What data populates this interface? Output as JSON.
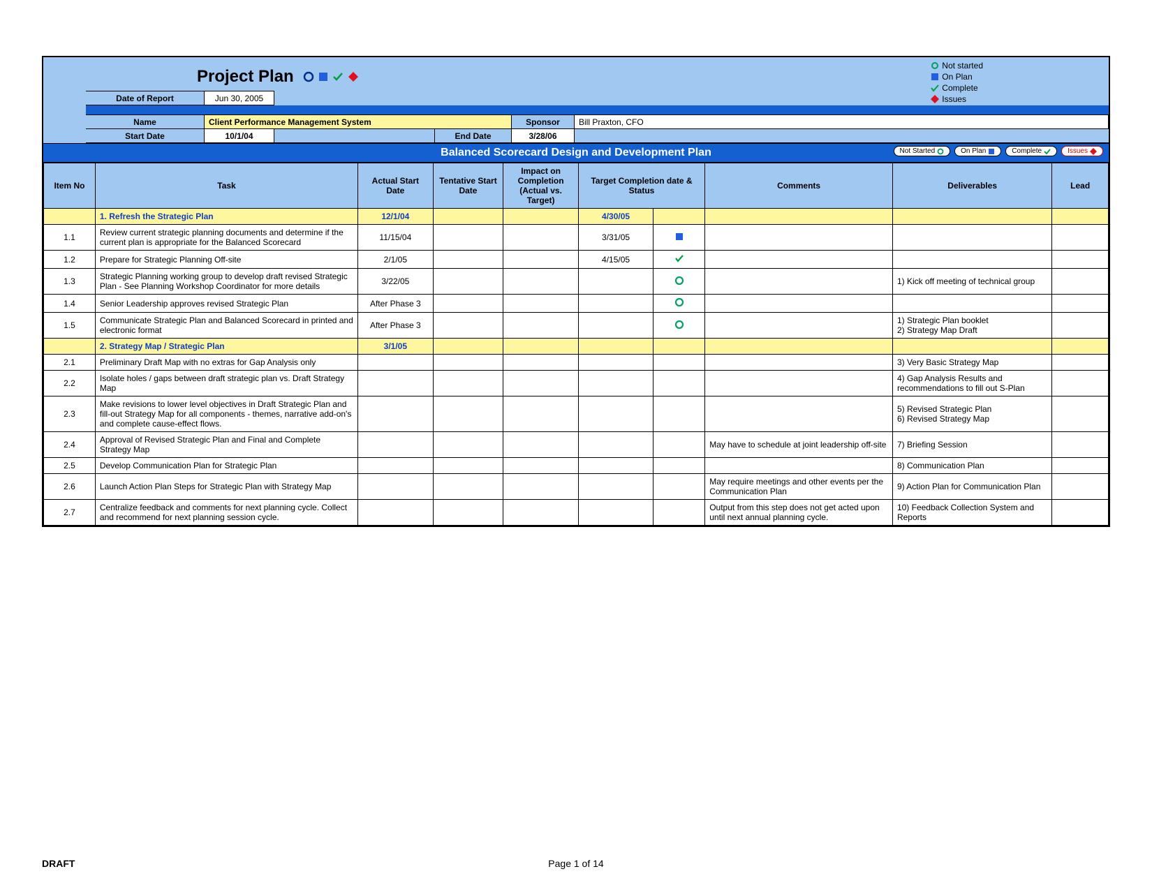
{
  "colors": {
    "header_bg": "#a0c8f0",
    "dark_blue": "#1560d0",
    "yellow": "#fff7a0",
    "border": "#000000",
    "not_started": "#00a060",
    "on_plan": "#2060e0",
    "complete": "#00a040",
    "issues": "#e01020"
  },
  "header": {
    "title": "Project Plan",
    "legend": {
      "not_started": "Not started",
      "on_plan": "On Plan",
      "complete": "Complete",
      "issues": "Issues"
    },
    "date_of_report_label": "Date of Report",
    "date_of_report": "Jun 30, 2005",
    "name_label": "Name",
    "name": "Client Performance Management System",
    "sponsor_label": "Sponsor",
    "sponsor": "Bill Praxton, CFO",
    "start_date_label": "Start Date",
    "start_date": "10/1/04",
    "end_date_label": "End Date",
    "end_date": "3/28/06"
  },
  "section_title": "Balanced Scorecard Design and Development Plan",
  "pills": {
    "not_started": "Not Started",
    "on_plan": "On Plan",
    "complete": "Complete",
    "issues": "Issues"
  },
  "columns": {
    "item_no": "Item No",
    "task": "Task",
    "actual_start": "Actual Start Date",
    "tentative_start": "Tentative Start Date",
    "impact": "Impact on Completion (Actual vs. Target)",
    "target": "Target Completion date & Status",
    "comments": "Comments",
    "deliverables": "Deliverables",
    "lead": "Lead"
  },
  "rows": [
    {
      "type": "section",
      "task": "1. Refresh the Strategic Plan",
      "actual": "12/1/04",
      "target": "4/30/05"
    },
    {
      "type": "item",
      "no": "1.1",
      "task": "Review current strategic planning documents and determine if the current plan is appropriate for the Balanced Scorecard",
      "actual": "11/15/04",
      "target": "3/31/05",
      "status": "on_plan"
    },
    {
      "type": "item",
      "no": "1.2",
      "task": "Prepare for Strategic Planning Off-site",
      "actual": "2/1/05",
      "target": "4/15/05",
      "status": "complete"
    },
    {
      "type": "item",
      "no": "1.3",
      "task": "Strategic Planning working group to develop draft revised Strategic Plan - See Planning Workshop Coordinator for more details",
      "actual": "3/22/05",
      "status": "not_started",
      "deliv": "1) Kick off meeting of technical group"
    },
    {
      "type": "item",
      "no": "1.4",
      "task": "Senior Leadership approves revised Strategic Plan",
      "actual": "After Phase 3",
      "status": "not_started"
    },
    {
      "type": "item",
      "no": "1.5",
      "task": "Communicate Strategic Plan and Balanced Scorecard in printed and electronic format",
      "actual": "After Phase 3",
      "status": "not_started",
      "deliv": "1) Strategic Plan booklet\n2) Strategy Map Draft"
    },
    {
      "type": "section",
      "task": "2. Strategy Map / Strategic Plan",
      "actual": "3/1/05"
    },
    {
      "type": "item",
      "no": "2.1",
      "task": "Preliminary Draft Map with no extras for Gap Analysis only",
      "deliv": "3) Very Basic Strategy Map"
    },
    {
      "type": "item",
      "no": "2.2",
      "task": "Isolate holes / gaps between draft strategic plan vs. Draft Strategy Map",
      "deliv": "4) Gap Analysis Results and recommendations to fill out S-Plan"
    },
    {
      "type": "item",
      "no": "2.3",
      "task": "Make revisions to lower level objectives in Draft Strategic Plan and fill-out Strategy Map for all components - themes, narrative add-on's and complete cause-effect flows.",
      "deliv": "5) Revised Strategic Plan\n6) Revised Strategy Map"
    },
    {
      "type": "item",
      "no": "2.4",
      "task": "Approval of Revised Strategic Plan and Final and Complete Strategy Map",
      "comments": "May have to schedule at joint leadership off-site",
      "deliv": "7) Briefing Session"
    },
    {
      "type": "item",
      "no": "2.5",
      "task": "Develop Communication Plan for Strategic Plan",
      "deliv": "8) Communication Plan"
    },
    {
      "type": "item",
      "no": "2.6",
      "task": "Launch Action Plan Steps for Strategic Plan with Strategy Map",
      "comments": "May require meetings and other events per the Communication Plan",
      "deliv": "9) Action Plan for Communication Plan"
    },
    {
      "type": "item",
      "no": "2.7",
      "task": "Centralize feedback and comments for next planning cycle. Collect and recommend for next planning session cycle.",
      "comments": "Output from this step does not get acted upon until next annual planning cycle.",
      "deliv": "10) Feedback Collection System and Reports"
    }
  ],
  "footer": {
    "draft": "DRAFT",
    "page": "Page 1 of 14"
  }
}
